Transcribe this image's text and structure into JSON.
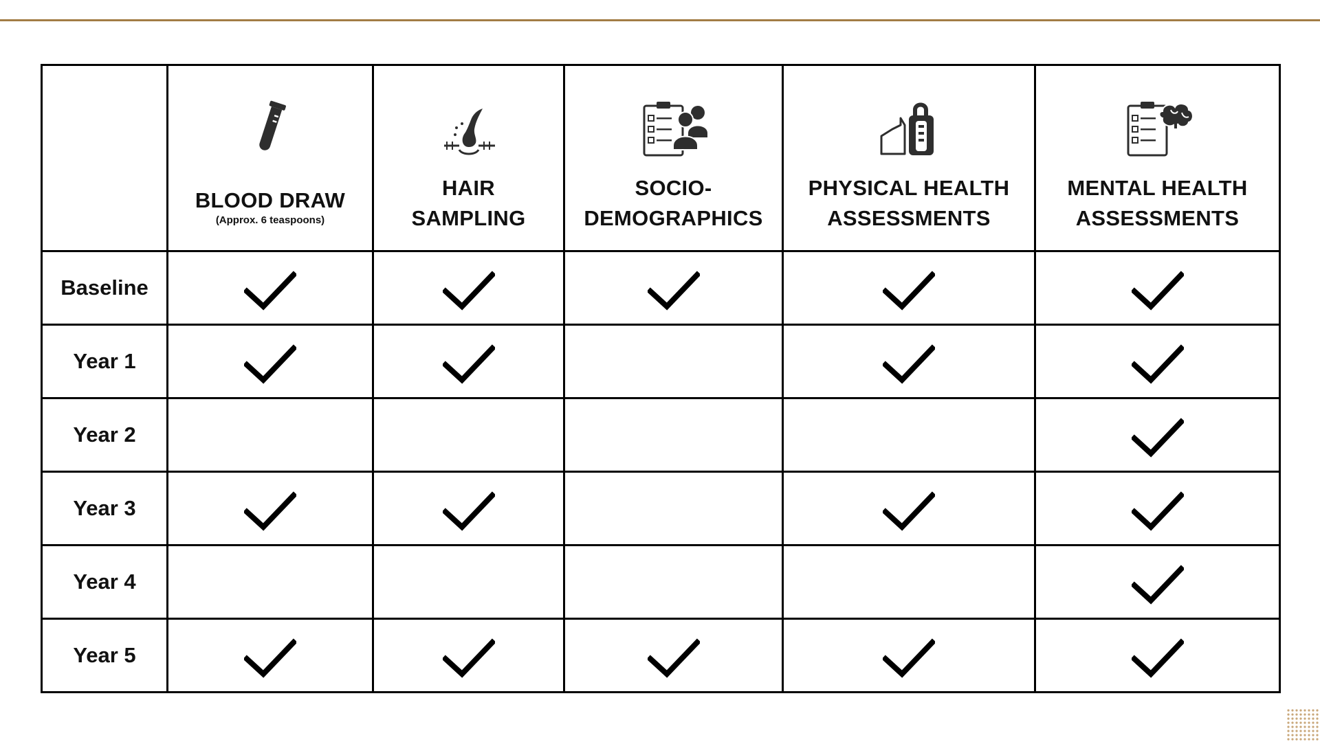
{
  "colors": {
    "accent_rule": "#a27c45",
    "border": "#000000",
    "icon": "#2e2e2e",
    "dots": "#c9a77a"
  },
  "table": {
    "columns": [
      {
        "title": "BLOOD DRAW",
        "note": "(Approx. 6 teaspoons)",
        "icon": "test-tube-icon"
      },
      {
        "title": "HAIR\nSAMPLING",
        "note": "",
        "icon": "hair-follicle-icon"
      },
      {
        "title": "SOCIO-\nDEMOGRAPHICS",
        "note": "",
        "icon": "survey-people-icon"
      },
      {
        "title": "PHYSICAL HEALTH\nASSESSMENTS",
        "note": "",
        "icon": "grip-dynamometer-icon"
      },
      {
        "title": "MENTAL HEALTH\nASSESSMENTS",
        "note": "",
        "icon": "survey-brain-icon"
      }
    ],
    "rows": [
      {
        "label": "Baseline",
        "checks": [
          true,
          true,
          true,
          true,
          true
        ]
      },
      {
        "label": "Year 1",
        "checks": [
          true,
          true,
          false,
          true,
          true
        ]
      },
      {
        "label": "Year 2",
        "checks": [
          false,
          false,
          false,
          false,
          true
        ]
      },
      {
        "label": "Year 3",
        "checks": [
          true,
          true,
          false,
          true,
          true
        ]
      },
      {
        "label": "Year 4",
        "checks": [
          false,
          false,
          false,
          false,
          true
        ]
      },
      {
        "label": "Year 5",
        "checks": [
          true,
          true,
          true,
          true,
          true
        ]
      }
    ]
  }
}
